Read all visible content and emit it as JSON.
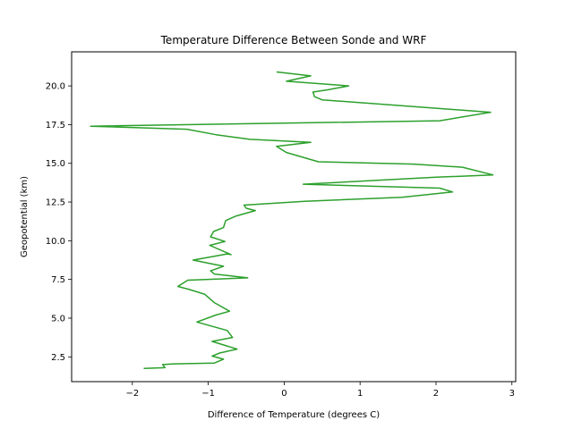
{
  "chart_data": {
    "type": "line",
    "title": "Temperature Difference Between Sonde and WRF",
    "xlabel": "Difference of Temperature (degrees C)",
    "ylabel": "Geopotential (km)",
    "xlim": [
      -2.8,
      3.05
    ],
    "ylim": [
      0.9,
      22.2
    ],
    "xticks": [
      -2,
      -1,
      0,
      1,
      2,
      3
    ],
    "xtick_labels": [
      "−2",
      "−1",
      "0",
      "1",
      "2",
      "3"
    ],
    "yticks": [
      2.5,
      5.0,
      7.5,
      10.0,
      12.5,
      15.0,
      17.5,
      20.0
    ],
    "ytick_labels": [
      "2.5",
      "5.0",
      "7.5",
      "10.0",
      "12.5",
      "15.0",
      "17.5",
      "20.0"
    ],
    "grid": false,
    "series": [
      {
        "color": "#2ca02c",
        "points": [
          [
            -1.85,
            1.75
          ],
          [
            -1.57,
            1.8
          ],
          [
            -1.6,
            2.0
          ],
          [
            -1.45,
            2.05
          ],
          [
            -0.92,
            2.1
          ],
          [
            -0.8,
            2.35
          ],
          [
            -0.95,
            2.55
          ],
          [
            -0.85,
            2.75
          ],
          [
            -0.62,
            3.0
          ],
          [
            -0.95,
            3.5
          ],
          [
            -0.68,
            3.75
          ],
          [
            -0.75,
            4.2
          ],
          [
            -1.15,
            4.75
          ],
          [
            -0.9,
            5.2
          ],
          [
            -0.72,
            5.45
          ],
          [
            -0.92,
            6.0
          ],
          [
            -1.05,
            6.55
          ],
          [
            -1.25,
            6.85
          ],
          [
            -1.4,
            7.05
          ],
          [
            -1.27,
            7.45
          ],
          [
            -0.48,
            7.6
          ],
          [
            -0.92,
            7.85
          ],
          [
            -0.97,
            8.05
          ],
          [
            -0.8,
            8.35
          ],
          [
            -1.2,
            8.75
          ],
          [
            -0.75,
            9.15
          ],
          [
            -0.7,
            9.1
          ],
          [
            -0.98,
            9.7
          ],
          [
            -0.78,
            9.95
          ],
          [
            -0.97,
            10.25
          ],
          [
            -0.93,
            10.6
          ],
          [
            -0.8,
            10.85
          ],
          [
            -0.77,
            11.3
          ],
          [
            -0.63,
            11.6
          ],
          [
            -0.38,
            11.95
          ],
          [
            -0.5,
            12.1
          ],
          [
            -0.53,
            12.3
          ],
          [
            0.27,
            12.55
          ],
          [
            1.55,
            12.8
          ],
          [
            2.22,
            13.15
          ],
          [
            2.05,
            13.4
          ],
          [
            0.25,
            13.65
          ],
          [
            2.0,
            14.1
          ],
          [
            2.75,
            14.25
          ],
          [
            2.35,
            14.75
          ],
          [
            1.7,
            14.95
          ],
          [
            0.45,
            15.1
          ],
          [
            0.03,
            15.7
          ],
          [
            -0.1,
            16.1
          ],
          [
            0.35,
            16.35
          ],
          [
            -0.45,
            16.55
          ],
          [
            -0.9,
            16.85
          ],
          [
            -1.28,
            17.2
          ],
          [
            -2.55,
            17.4
          ],
          [
            2.05,
            17.75
          ],
          [
            2.72,
            18.3
          ],
          [
            0.5,
            19.1
          ],
          [
            0.4,
            19.3
          ],
          [
            0.38,
            19.6
          ],
          [
            0.58,
            19.75
          ],
          [
            0.85,
            20.0
          ],
          [
            0.03,
            20.3
          ],
          [
            0.35,
            20.65
          ],
          [
            -0.1,
            20.9
          ]
        ]
      }
    ]
  }
}
